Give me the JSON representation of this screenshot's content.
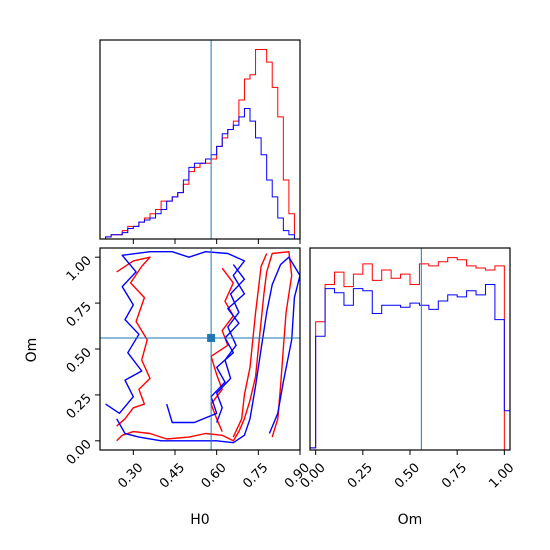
{
  "chart_data": {
    "type": "corner",
    "parameters": [
      "H0",
      "Om"
    ],
    "truth": {
      "H0": 0.58,
      "Om": 0.56
    },
    "series_colors": {
      "red": "#ff0000",
      "blue": "#0000ff",
      "truth": "#1f77b4"
    },
    "axes": {
      "h0_hist": {
        "type": "step-histogram",
        "xlim": [
          0.18,
          0.9
        ],
        "bins": [
          0.18,
          0.2,
          0.22,
          0.24,
          0.26,
          0.28,
          0.3,
          0.32,
          0.34,
          0.36,
          0.38,
          0.4,
          0.42,
          0.44,
          0.46,
          0.48,
          0.5,
          0.52,
          0.54,
          0.56,
          0.58,
          0.6,
          0.62,
          0.64,
          0.66,
          0.68,
          0.7,
          0.72,
          0.74,
          0.76,
          0.78,
          0.8,
          0.82,
          0.84,
          0.86,
          0.88,
          0.9
        ],
        "series": [
          {
            "color": "red",
            "values": [
              0,
              0.5,
              1,
              1,
              2,
              3,
              3,
              4,
              5,
              6,
              7,
              9,
              9,
              10,
              11,
              13,
              16,
              17,
              18,
              18,
              19,
              22,
              24,
              26,
              28,
              33,
              38,
              39,
              45,
              45,
              42,
              36,
              29,
              14,
              6,
              0
            ]
          },
          {
            "color": "blue",
            "values": [
              0,
              0.5,
              1,
              1,
              1.5,
              2.5,
              3,
              4,
              4.5,
              5,
              6,
              7,
              9,
              10,
              11,
              14,
              17,
              18,
              18,
              19,
              20,
              22,
              25,
              26,
              27,
              29,
              31,
              28,
              24,
              20,
              14,
              10,
              5,
              2,
              1,
              0
            ]
          }
        ]
      },
      "om_hist": {
        "type": "step-histogram",
        "xlim": [
          -0.03,
          1.03
        ],
        "xlabel": "Om",
        "xticks": [
          "0.00",
          "0.25",
          "0.50",
          "0.75",
          "1.00"
        ],
        "xtick_values": [
          0.0,
          0.25,
          0.5,
          0.75,
          1.0
        ],
        "bins": [
          -0.03,
          0.0,
          0.05,
          0.1,
          0.15,
          0.2,
          0.25,
          0.3,
          0.35,
          0.4,
          0.45,
          0.5,
          0.55,
          0.6,
          0.65,
          0.7,
          0.75,
          0.8,
          0.85,
          0.9,
          0.95,
          1.0,
          1.03
        ],
        "series": [
          {
            "color": "red",
            "values": [
              0.1,
              6.2,
              8.0,
              8.6,
              7.9,
              8.5,
              9.0,
              8.2,
              8.7,
              8.3,
              8.5,
              8.0,
              9.0,
              8.9,
              9.1,
              9.3,
              9.2,
              8.9,
              8.8,
              8.7,
              8.9,
              0
            ]
          },
          {
            "color": "blue",
            "values": [
              0.1,
              5.5,
              7.8,
              7.6,
              7.0,
              7.8,
              7.7,
              6.6,
              7.0,
              7.0,
              6.9,
              7.1,
              7.0,
              6.8,
              7.2,
              7.5,
              7.4,
              7.7,
              7.5,
              8.0,
              6.3,
              1.9
            ]
          }
        ]
      },
      "joint": {
        "type": "contour",
        "xlim": [
          0.18,
          0.9
        ],
        "ylim": [
          -0.05,
          1.05
        ],
        "xlabel": "H0",
        "ylabel": "Om",
        "xticks": [
          "0.30",
          "0.45",
          "0.60",
          "0.75",
          "0.90"
        ],
        "xtick_values": [
          0.3,
          0.45,
          0.6,
          0.75,
          0.9
        ],
        "yticks": [
          "0.00",
          "0.25",
          "0.50",
          "0.75",
          "1.00"
        ],
        "ytick_values": [
          0.0,
          0.25,
          0.5,
          0.75,
          1.0
        ],
        "contours": [
          {
            "color": "red",
            "points": [
              [
                0.24,
                0.0
              ],
              [
                0.26,
                0.03
              ],
              [
                0.3,
                0.05
              ],
              [
                0.36,
                0.04
              ],
              [
                0.42,
                0.01
              ],
              [
                0.5,
                0.02
              ],
              [
                0.56,
                0.04
              ],
              [
                0.62,
                0.03
              ],
              [
                0.66,
                0.0
              ],
              [
                0.68,
                0.05
              ],
              [
                0.7,
                0.12
              ],
              [
                0.72,
                0.22
              ],
              [
                0.74,
                0.35
              ],
              [
                0.75,
                0.5
              ],
              [
                0.76,
                0.65
              ],
              [
                0.77,
                0.8
              ],
              [
                0.78,
                0.92
              ],
              [
                0.8,
                1.02
              ],
              [
                0.86,
                1.03
              ],
              [
                0.87,
                0.9
              ],
              [
                0.85,
                0.7
              ],
              [
                0.84,
                0.5
              ],
              [
                0.83,
                0.3
              ],
              [
                0.82,
                0.12
              ],
              [
                0.8,
                0.02
              ]
            ]
          },
          {
            "color": "red",
            "points": [
              [
                0.66,
                0.02
              ],
              [
                0.69,
                0.12
              ],
              [
                0.7,
                0.25
              ],
              [
                0.72,
                0.4
              ],
              [
                0.73,
                0.55
              ],
              [
                0.74,
                0.7
              ],
              [
                0.75,
                0.82
              ],
              [
                0.76,
                0.95
              ],
              [
                0.78,
                1.02
              ]
            ]
          },
          {
            "color": "red",
            "points": [
              [
                0.24,
                0.08
              ],
              [
                0.27,
                0.12
              ],
              [
                0.3,
                0.18
              ],
              [
                0.34,
                0.2
              ],
              [
                0.32,
                0.28
              ],
              [
                0.36,
                0.34
              ],
              [
                0.33,
                0.44
              ],
              [
                0.35,
                0.55
              ],
              [
                0.31,
                0.65
              ],
              [
                0.34,
                0.78
              ],
              [
                0.29,
                0.86
              ],
              [
                0.33,
                0.95
              ],
              [
                0.36,
                1.0
              ],
              [
                0.3,
                0.98
              ],
              [
                0.24,
                0.92
              ]
            ]
          },
          {
            "color": "red",
            "points": [
              [
                0.62,
                0.05
              ],
              [
                0.6,
                0.12
              ],
              [
                0.58,
                0.2
              ],
              [
                0.62,
                0.28
              ],
              [
                0.6,
                0.36
              ],
              [
                0.58,
                0.46
              ],
              [
                0.64,
                0.52
              ],
              [
                0.62,
                0.6
              ],
              [
                0.66,
                0.68
              ],
              [
                0.63,
                0.76
              ],
              [
                0.66,
                0.86
              ],
              [
                0.62,
                0.94
              ]
            ]
          },
          {
            "color": "blue",
            "points": [
              [
                0.24,
                0.12
              ],
              [
                0.27,
                0.04
              ],
              [
                0.32,
                0.02
              ],
              [
                0.4,
                0.0
              ],
              [
                0.5,
                0.0
              ],
              [
                0.6,
                0.0
              ],
              [
                0.66,
                -0.01
              ],
              [
                0.7,
                0.03
              ],
              [
                0.72,
                0.12
              ],
              [
                0.74,
                0.3
              ],
              [
                0.76,
                0.5
              ],
              [
                0.78,
                0.7
              ],
              [
                0.8,
                0.85
              ],
              [
                0.83,
                0.96
              ],
              [
                0.86,
                1.0
              ],
              [
                0.9,
                0.9
              ],
              [
                0.88,
                0.78
              ],
              [
                0.87,
                0.55
              ],
              [
                0.84,
                0.32
              ],
              [
                0.82,
                0.15
              ],
              [
                0.79,
                0.04
              ]
            ]
          },
          {
            "color": "blue",
            "points": [
              [
                0.2,
                0.2
              ],
              [
                0.25,
                0.15
              ],
              [
                0.3,
                0.24
              ],
              [
                0.27,
                0.33
              ],
              [
                0.33,
                0.38
              ],
              [
                0.28,
                0.48
              ],
              [
                0.32,
                0.58
              ],
              [
                0.27,
                0.66
              ],
              [
                0.3,
                0.74
              ],
              [
                0.26,
                0.84
              ],
              [
                0.31,
                0.92
              ],
              [
                0.26,
                1.01
              ],
              [
                0.36,
                1.03
              ],
              [
                0.44,
                1.03
              ],
              [
                0.5,
                1.0
              ],
              [
                0.56,
                1.03
              ],
              [
                0.64,
                1.02
              ],
              [
                0.7,
                0.98
              ],
              [
                0.66,
                0.9
              ],
              [
                0.7,
                0.8
              ],
              [
                0.64,
                0.72
              ],
              [
                0.68,
                0.64
              ],
              [
                0.63,
                0.56
              ],
              [
                0.66,
                0.48
              ],
              [
                0.6,
                0.4
              ],
              [
                0.63,
                0.32
              ],
              [
                0.58,
                0.24
              ],
              [
                0.6,
                0.15
              ],
              [
                0.52,
                0.1
              ],
              [
                0.44,
                0.1
              ],
              [
                0.42,
                0.2
              ]
            ]
          },
          {
            "color": "blue",
            "points": [
              [
                0.6,
                0.1
              ],
              [
                0.62,
                0.18
              ],
              [
                0.6,
                0.26
              ],
              [
                0.65,
                0.34
              ],
              [
                0.63,
                0.44
              ],
              [
                0.67,
                0.52
              ],
              [
                0.64,
                0.62
              ],
              [
                0.68,
                0.7
              ],
              [
                0.65,
                0.8
              ],
              [
                0.7,
                0.88
              ],
              [
                0.66,
                0.96
              ]
            ]
          }
        ]
      }
    }
  }
}
